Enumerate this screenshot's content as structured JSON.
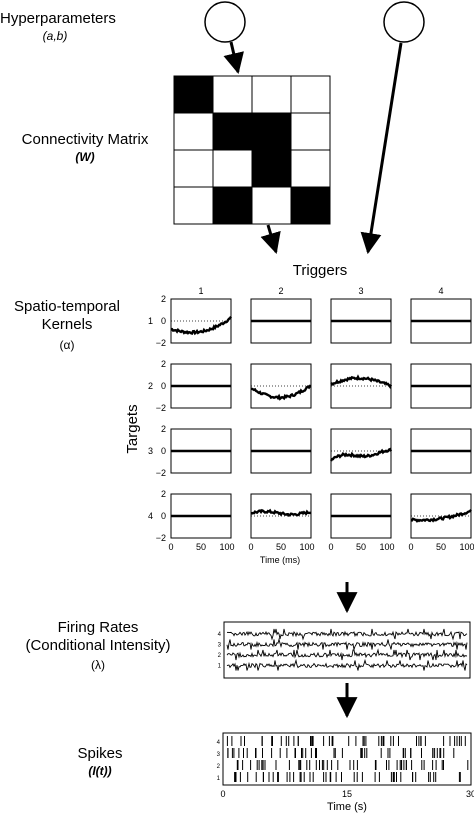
{
  "labels": {
    "hyperparameters": "Hyperparameters",
    "hyperparameters_sub": "(a,b)",
    "connectivity": "Connectivity Matrix",
    "connectivity_sub": "(W)",
    "triggers": "Triggers",
    "kernels_line1": "Spatio-temporal",
    "kernels_line2": "Kernels",
    "kernels_sub": "(α)",
    "targets": "Targets",
    "rates_line1": "Firing Rates",
    "rates_line2": "(Conditional Intensity)",
    "rates_sub": "(λ)",
    "spikes": "Spikes",
    "spikes_sub": "(I(t))"
  },
  "connectivity_matrix": [
    [
      1,
      0,
      0,
      0
    ],
    [
      0,
      1,
      1,
      0
    ],
    [
      0,
      0,
      1,
      0
    ],
    [
      0,
      1,
      0,
      1
    ]
  ],
  "kernel_grid": {
    "trigger_labels": [
      "1",
      "2",
      "3",
      "4"
    ],
    "target_labels": [
      "1",
      "2",
      "3",
      "4"
    ],
    "y_ticks": [
      "2",
      "0",
      "−2"
    ],
    "x_ticks": [
      "0",
      "50",
      "100"
    ],
    "xlabel": "Time (ms)"
  },
  "rates_plot": {
    "row_labels": [
      "4",
      "3",
      "2",
      "1"
    ]
  },
  "spikes_plot": {
    "row_labels": [
      "4",
      "3",
      "2",
      "1"
    ],
    "x_ticks": [
      "0",
      "15",
      "30"
    ],
    "xlabel": "Time (s)"
  },
  "colors": {
    "ink": "#000000",
    "fill": "#000000",
    "background": "#ffffff"
  }
}
